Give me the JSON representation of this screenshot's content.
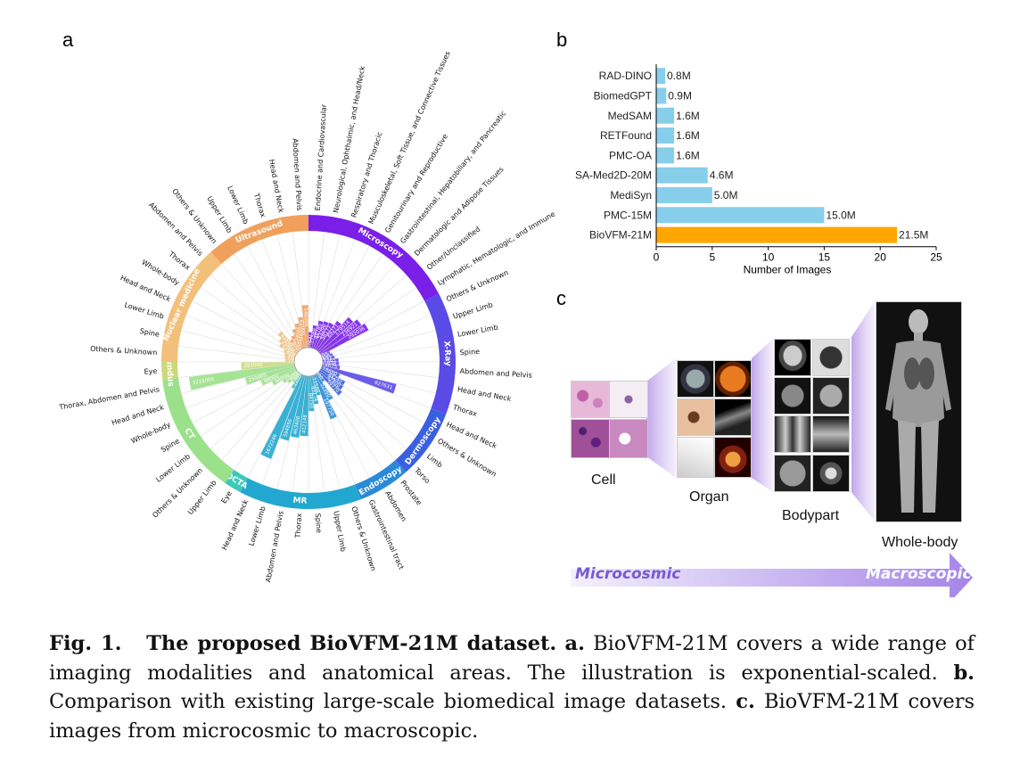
{
  "panel_labels": {
    "a": "a",
    "b": "b",
    "c": "c"
  },
  "radial": {
    "modalities": [
      {
        "name": "Microscopy",
        "color": "#7a1fe8",
        "items": [
          "Endocrine and Cardiovascular",
          "Neurological, Ophthalmic, and Head/Neck",
          "Respiratory and Thoracic",
          "Musculoskeletal, Soft Tissue, and Connective Tissues",
          "Genitourinary and Reproductive",
          "Gastrointestinal, Hepatobiliary, and Pancreatic",
          "Dermatologic and Adipose Tissues",
          "Other/Unclassified",
          "Lymphatic, Hematologic, and Immune"
        ],
        "values": [
          "10900",
          "27588",
          "48785",
          "53296",
          "58177",
          "89271",
          "179514",
          "236921",
          "292036"
        ]
      },
      {
        "name": "X-Ray",
        "color": "#5a4ae6",
        "items": [
          "Others & Unknown",
          "Upper Limb",
          "Lower Limb",
          "Spine",
          "Abdomen and Pelvis",
          "Head and Neck",
          "Thorax"
        ],
        "values": [
          "1803",
          "3858",
          "5697",
          "11265",
          "11938",
          "14675",
          "927631"
        ]
      },
      {
        "name": "Dermoscopy",
        "color": "#3a5fe0",
        "items": [
          "Head and Neck",
          "Others & Unknown",
          "Limb",
          "Torso"
        ],
        "values": [
          "18690",
          "44240",
          "47400",
          "59770"
        ]
      },
      {
        "name": "Endoscopy",
        "color": "#2a8ad8",
        "items": [
          "Prostate",
          "Abdomen",
          "Gastrointestinal tract"
        ],
        "values": [
          "3000",
          "52960",
          "197750"
        ]
      },
      {
        "name": "MR",
        "color": "#22a8d0",
        "items": [
          "Others & Unknown",
          "Upper Limb",
          "Spine",
          "Thorax",
          "Abdomen and Pelvis",
          "Lower Limb",
          "Head and Neck"
        ],
        "values": [
          "21548",
          "49174",
          "84750",
          "412148",
          "463488",
          "594856",
          "1672246"
        ]
      },
      {
        "name": "OCTA",
        "color": "#3ec8b8",
        "items": [
          "Eye"
        ],
        "values": [
          "12000"
        ]
      },
      {
        "name": "CT",
        "color": "#9be08a",
        "items": [
          "Upper Limb",
          "Others & Unknown",
          "Lower Limb",
          "Spine",
          "Whole-body",
          "Head and Neck",
          "Thorax, Abdomen and Pelvis"
        ],
        "values": [
          "4000",
          "9000",
          "15000",
          "44000",
          "98000",
          "250000",
          "3219000"
        ]
      },
      {
        "name": "Fundus",
        "color": "#cbd87e",
        "items": [
          "Eye"
        ],
        "values": [
          "281000"
        ]
      },
      {
        "name": "Nuclear medicine",
        "color": "#f2c07a",
        "items": [
          "Others & Unknown",
          "Spine",
          "Lower Limb",
          "Head and Neck",
          "Whole-body",
          "Thorax",
          "Abdomen and Pelvis"
        ],
        "values": [
          "1200",
          "2600",
          "3600",
          "6200",
          "17600",
          "25400",
          "41600"
        ]
      },
      {
        "name": "Ultrasound",
        "color": "#f0a05c",
        "items": [
          "Others & Unknown",
          "Upper Limb",
          "Lower Limb",
          "Thorax",
          "Head and Neck",
          "Abdomen and Pelvis"
        ],
        "values": [
          "8000",
          "12000",
          "24000",
          "38000",
          "62000",
          "146000"
        ]
      }
    ]
  },
  "chart_data": {
    "type": "bar",
    "orientation": "horizontal",
    "categories": [
      "RAD-DINO",
      "BiomedGPT",
      "MedSAM",
      "RETFound",
      "PMC-OA",
      "SA-Med2D-20M",
      "MediSyn",
      "PMC-15M",
      "BioVFM-21M"
    ],
    "values": [
      0.8,
      0.9,
      1.6,
      1.6,
      1.6,
      4.6,
      5.0,
      15.0,
      21.5
    ],
    "labels": [
      "0.8M",
      "0.9M",
      "1.6M",
      "1.6M",
      "1.6M",
      "4.6M",
      "5.0M",
      "15.0M",
      "21.5M"
    ],
    "colors": [
      "#87ceeb",
      "#87ceeb",
      "#87ceeb",
      "#87ceeb",
      "#87ceeb",
      "#87ceeb",
      "#87ceeb",
      "#87ceeb",
      "#ffa500"
    ],
    "xlabel": "Number of Images",
    "xlim": [
      0,
      25
    ],
    "xticks": [
      "0",
      "5",
      "10",
      "15",
      "20",
      "25"
    ],
    "title": "",
    "ylabel": ""
  },
  "panel_c": {
    "labels": {
      "cell": "Cell",
      "organ": "Organ",
      "bodypart": "Bodypart",
      "wholebody": "Whole-body"
    },
    "arrow": {
      "left": "Microcosmic",
      "right": "Macroscopic"
    }
  },
  "caption": {
    "fig": "Fig. 1.",
    "title": "The proposed BioVFM-21M dataset.",
    "a_label": "a.",
    "a_text": "BioVFM-21M covers a wide range of imaging modalities and anatomical areas. The illustration is exponential-scaled.",
    "b_label": "b.",
    "b_text": "Comparison with existing large-scale biomedical image datasets.",
    "c_label": "c.",
    "c_text": "BioVFM-21M covers images from microcosmic to macroscopic."
  }
}
